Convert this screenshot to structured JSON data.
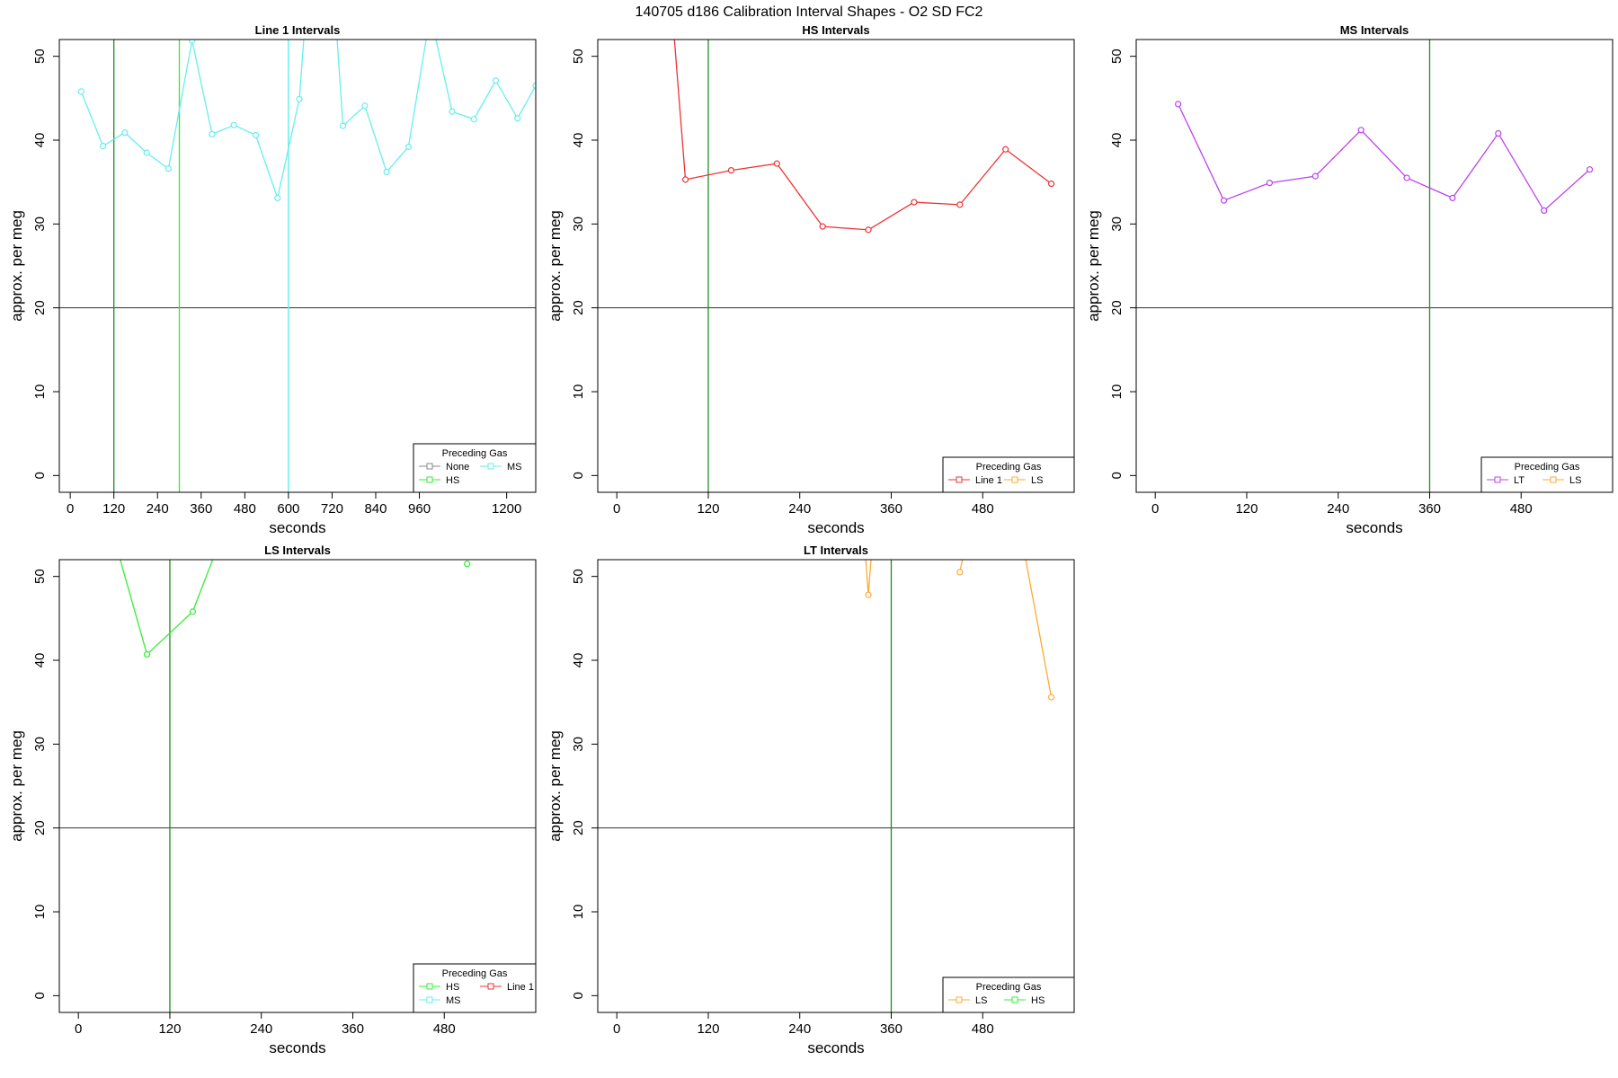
{
  "figure_title": "140705   d186   Calibration Interval Shapes - O2 SD FC2",
  "chart_data": [
    {
      "type": "line",
      "title": "Line 1 Intervals",
      "xlabel": "seconds",
      "ylabel": "approx. per meg",
      "xlim": [
        -30,
        1280
      ],
      "ylim": [
        -2,
        52
      ],
      "xticks": [
        0,
        120,
        240,
        360,
        480,
        600,
        720,
        840,
        960,
        1200
      ],
      "yticks": [
        0,
        10,
        20,
        30,
        40,
        50
      ],
      "hline": 20,
      "vlines": [
        {
          "x": 120,
          "color": "#228B22"
        },
        {
          "x": 300,
          "color": "#33ee33"
        },
        {
          "x": 600,
          "color": "#66eeee"
        }
      ],
      "series": [
        {
          "color": "#66eeee",
          "x": [
            30,
            90,
            150,
            210,
            270,
            335,
            390,
            450,
            510,
            570,
            630,
            690,
            750,
            810,
            870,
            930,
            990,
            1050,
            1110,
            1170,
            1230,
            1280
          ],
          "y": [
            45.8,
            39.3,
            40.9,
            38.5,
            36.6,
            51.9,
            40.7,
            41.8,
            40.6,
            33.1,
            44.9,
            80,
            41.7,
            44.1,
            36.2,
            39.2,
            55,
            43.4,
            42.5,
            47.1,
            42.6,
            46.5
          ],
          "drop_at": 600
        }
      ],
      "legend": {
        "title": "Preceding Gas",
        "position": "bottom-right",
        "entries": [
          {
            "label": "None",
            "color": "#888888"
          },
          {
            "label": "HS",
            "color": "#33ee33"
          },
          {
            "label": "MS",
            "color": "#66eeee"
          }
        ]
      }
    },
    {
      "type": "line",
      "title": "HS Intervals",
      "xlabel": "seconds",
      "ylabel": "approx. per meg",
      "xlim": [
        -25,
        600
      ],
      "ylim": [
        -2,
        52
      ],
      "xticks": [
        0,
        120,
        240,
        360,
        480
      ],
      "yticks": [
        0,
        10,
        20,
        30,
        40,
        50
      ],
      "hline": 20,
      "vlines": [
        {
          "x": 120,
          "color": "#228B22"
        }
      ],
      "series": [
        {
          "color": "#ee3333",
          "x": [
            60,
            90,
            150,
            210,
            270,
            330,
            390,
            450,
            510,
            570
          ],
          "y": [
            70,
            35.3,
            36.4,
            37.2,
            29.7,
            29.3,
            32.6,
            32.3,
            38.9,
            34.8
          ]
        }
      ],
      "legend": {
        "title": "Preceding Gas",
        "position": "bottom-right",
        "entries": [
          {
            "label": "Line 1",
            "color": "#ee3333"
          },
          {
            "label": "LS",
            "color": "#ffaa33"
          }
        ]
      }
    },
    {
      "type": "line",
      "title": "MS Intervals",
      "xlabel": "seconds",
      "ylabel": "approx. per meg",
      "xlim": [
        -25,
        600
      ],
      "ylim": [
        -2,
        52
      ],
      "xticks": [
        0,
        120,
        240,
        360,
        480
      ],
      "yticks": [
        0,
        10,
        20,
        30,
        40,
        50
      ],
      "hline": 20,
      "vlines": [
        {
          "x": 360,
          "color": "#228B22"
        }
      ],
      "series": [
        {
          "color": "#bb44ee",
          "x": [
            30,
            90,
            150,
            210,
            270,
            330,
            390,
            450,
            510,
            570
          ],
          "y": [
            44.3,
            32.8,
            34.9,
            35.7,
            41.2,
            35.5,
            33.1,
            40.8,
            31.6,
            36.5
          ]
        }
      ],
      "legend": {
        "title": "Preceding Gas",
        "position": "bottom-right",
        "entries": [
          {
            "label": "LT",
            "color": "#bb44ee"
          },
          {
            "label": "LS",
            "color": "#ffaa33"
          }
        ]
      }
    },
    {
      "type": "line",
      "title": "LS Intervals",
      "xlabel": "seconds",
      "ylabel": "approx. per meg",
      "xlim": [
        -25,
        600
      ],
      "ylim": [
        -2,
        52
      ],
      "xticks": [
        0,
        120,
        240,
        360,
        480
      ],
      "yticks": [
        0,
        10,
        20,
        30,
        40,
        50
      ],
      "hline": 20,
      "vlines": [
        {
          "x": 120,
          "color": "#228B22"
        }
      ],
      "series": [
        {
          "color": "#33ee33",
          "x": [
            30,
            90,
            150,
            210
          ],
          "y": [
            60,
            40.7,
            45.8,
            60
          ]
        },
        {
          "color": "#33ee33",
          "x": [
            510
          ],
          "y": [
            51.5
          ]
        }
      ],
      "legend": {
        "title": "Preceding Gas",
        "position": "bottom-right",
        "entries": [
          {
            "label": "HS",
            "color": "#33ee33"
          },
          {
            "label": "MS",
            "color": "#66eeee"
          },
          {
            "label": "Line 1",
            "color": "#ee3333"
          }
        ]
      }
    },
    {
      "type": "line",
      "title": "LT Intervals",
      "xlabel": "seconds",
      "ylabel": "approx. per meg",
      "xlim": [
        -25,
        600
      ],
      "ylim": [
        -2,
        52
      ],
      "xticks": [
        0,
        120,
        240,
        360,
        480
      ],
      "yticks": [
        0,
        10,
        20,
        30,
        40,
        50
      ],
      "hline": 20,
      "vlines": [
        {
          "x": 360,
          "color": "#228B22"
        }
      ],
      "series": [
        {
          "color": "#ffaa33",
          "x": [
            320,
            330,
            340
          ],
          "y": [
            60,
            47.8,
            60
          ]
        },
        {
          "color": "#ffaa33",
          "x": [
            450,
            460,
            520,
            570
          ],
          "y": [
            50.5,
            55,
            60,
            35.6
          ]
        }
      ],
      "legend": {
        "title": "Preceding Gas",
        "position": "bottom-right",
        "entries": [
          {
            "label": "LS",
            "color": "#ffaa33"
          },
          {
            "label": "HS",
            "color": "#33ee33"
          }
        ]
      }
    }
  ]
}
